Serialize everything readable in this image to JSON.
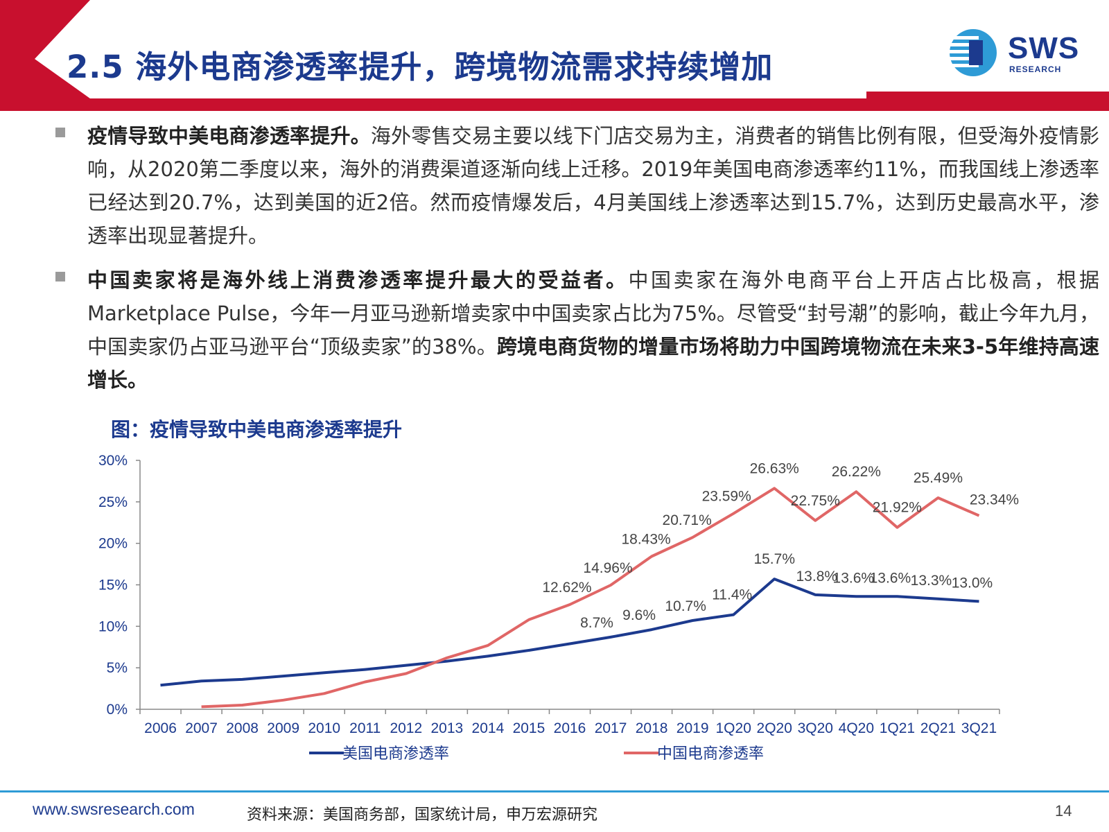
{
  "header": {
    "title": "2.5 海外电商渗透率提升，跨境物流需求持续增加",
    "logo_text": "SWS",
    "logo_sub": "RESEARCH",
    "accent_red": "#c8102e",
    "accent_blue": "#1c3a8e"
  },
  "bullets": [
    {
      "bold": "疫情导致中美电商渗透率提升。",
      "text": "海外零售交易主要以线下门店交易为主，消费者的销售比例有限，但受海外疫情影响，从2020第二季度以来，海外的消费渠道逐渐向线上迁移。2019年美国电商渗透率约11%，而我国线上渗透率已经达到20.7%，达到美国的近2倍。然而疫情爆发后，4月美国线上渗透率达到15.7%，达到历史最高水平，渗透率出现显著提升。"
    },
    {
      "bold": "中国卖家将是海外线上消费渗透率提升最大的受益者。",
      "text": "中国卖家在海外电商平台上开店占比极高，根据Marketplace Pulse，今年一月亚马逊新增卖家中中国卖家占比为75%。尽管受“封号潮”的影响，截止今年九月，中国卖家仍占亚马逊平台“顶级卖家”的38%。",
      "bold_tail": "跨境电商货物的增量市场将助力中国跨境物流在未来3-5年维持高速增长。"
    }
  ],
  "chart_title": "图：疫情导致中美电商渗透率提升",
  "chart_data": {
    "type": "line",
    "categories": [
      "2006",
      "2007",
      "2008",
      "2009",
      "2010",
      "2011",
      "2012",
      "2013",
      "2014",
      "2015",
      "2016",
      "2017",
      "2018",
      "2019",
      "1Q20",
      "2Q20",
      "3Q20",
      "4Q20",
      "1Q21",
      "2Q21",
      "3Q21"
    ],
    "ylim": [
      0,
      30
    ],
    "yticks": [
      "0%",
      "5%",
      "10%",
      "15%",
      "20%",
      "25%",
      "30%"
    ],
    "legend_position": "bottom",
    "series": [
      {
        "name": "美国电商渗透率",
        "color": "#1c3a8e",
        "values": [
          2.9,
          3.4,
          3.6,
          4.0,
          4.4,
          4.8,
          5.3,
          5.8,
          6.4,
          7.1,
          7.9,
          8.7,
          9.6,
          10.7,
          11.4,
          15.7,
          13.8,
          13.6,
          13.6,
          13.3,
          13.0
        ],
        "labels": [
          null,
          null,
          null,
          null,
          null,
          null,
          null,
          null,
          null,
          null,
          null,
          "8.7%",
          "9.6%",
          "10.7%",
          "11.4%",
          "15.7%",
          "13.8%",
          "13.6%",
          "13.6%",
          "13.3%",
          "13.0%"
        ]
      },
      {
        "name": "中国电商渗透率",
        "color": "#e06666",
        "values": [
          null,
          0.3,
          0.5,
          1.1,
          1.9,
          3.3,
          4.3,
          6.2,
          7.7,
          10.8,
          12.62,
          14.96,
          18.43,
          20.71,
          23.59,
          26.63,
          22.75,
          26.22,
          21.92,
          25.49,
          23.34
        ],
        "labels": [
          null,
          null,
          null,
          null,
          null,
          null,
          null,
          null,
          null,
          null,
          "12.62%",
          "14.96%",
          "18.43%",
          "20.71%",
          "23.59%",
          "26.63%",
          "22.75%",
          "26.22%",
          "21.92%",
          "25.49%",
          "23.34%"
        ]
      }
    ]
  },
  "footer": {
    "url": "www.swsresearch.com",
    "source": "资料来源：美国商务部，国家统计局，申万宏源研究",
    "page": "14"
  }
}
